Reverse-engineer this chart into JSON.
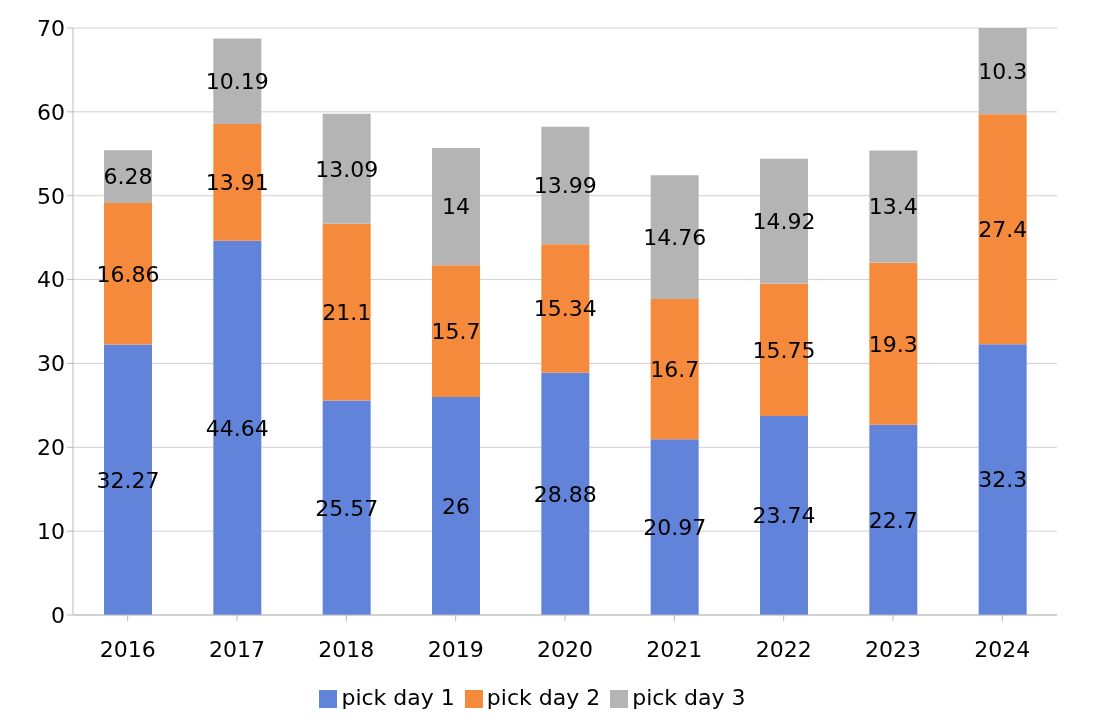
{
  "chart_data": {
    "type": "bar",
    "stacked": true,
    "categories": [
      "2016",
      "2017",
      "2018",
      "2019",
      "2020",
      "2021",
      "2022",
      "2023",
      "2024"
    ],
    "series": [
      {
        "name": "pick day 1",
        "color": "#6183d9",
        "values": [
          32.27,
          44.64,
          25.57,
          26,
          28.88,
          20.97,
          23.74,
          22.7,
          32.3
        ]
      },
      {
        "name": "pick day 2",
        "color": "#f58a3c",
        "values": [
          16.86,
          13.91,
          21.1,
          15.7,
          15.34,
          16.7,
          15.75,
          19.3,
          27.4
        ]
      },
      {
        "name": "pick day 3",
        "color": "#b4b4b4",
        "values": [
          6.28,
          10.19,
          13.09,
          14,
          13.99,
          14.76,
          14.92,
          13.4,
          10.3
        ]
      }
    ],
    "ylim": [
      0,
      70
    ],
    "yticks": [
      0,
      10,
      20,
      30,
      40,
      50,
      60,
      70
    ],
    "grid": "y",
    "legend": "bottom",
    "data_labels": true
  }
}
